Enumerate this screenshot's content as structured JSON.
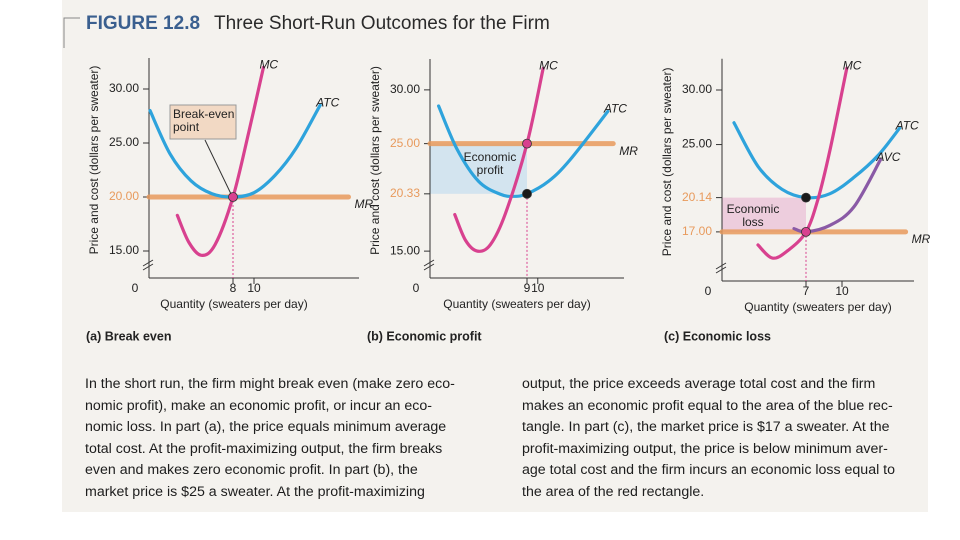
{
  "figure": {
    "label": "FIGURE 12.8",
    "title": "Three Short-Run Outcomes for the Firm"
  },
  "chart_data": [
    {
      "type": "line",
      "title": "(a) Break even",
      "x_label": "Quantity (sweaters per day)",
      "y_label": "Price and cost (dollars per sweater)",
      "xlim": [
        0,
        20
      ],
      "ylim": [
        12.5,
        32.5
      ],
      "xticks": [
        0,
        8,
        10
      ],
      "yticks": [
        {
          "value": 15,
          "label": "15.00"
        },
        {
          "value": 20,
          "label": "20.00"
        },
        {
          "value": 25,
          "label": "25.00"
        },
        {
          "value": 30,
          "label": "30.00"
        }
      ],
      "series": [
        {
          "name": "MR",
          "color": "#e89a5c",
          "x": [
            0,
            19
          ],
          "values": [
            20,
            20
          ]
        },
        {
          "name": "ATC",
          "color": "#2ea3dc",
          "x": [
            0.1,
            2,
            4,
            6,
            8,
            10,
            12,
            14,
            16.3
          ],
          "values": [
            28,
            24,
            21.5,
            20.3,
            20,
            20.4,
            22,
            24.5,
            28.5
          ]
        },
        {
          "name": "MC",
          "color": "#d8418f",
          "x": [
            2.7,
            3.8,
            5,
            6.3,
            8,
            9.5,
            10.9
          ],
          "values": [
            18.3,
            15.8,
            14.6,
            15.6,
            20,
            26,
            32
          ]
        }
      ],
      "points": {
        "x": [
          8
        ],
        "y": [
          20
        ],
        "colors": [
          "#d8418f"
        ]
      },
      "annotation": "Break-even point"
    },
    {
      "type": "line",
      "title": "(b) Economic profit",
      "x_label": "Quantity (sweaters per day)",
      "y_label": "Price and cost (dollars per sweater)",
      "xlim": [
        0,
        18
      ],
      "ylim": [
        12.5,
        32.5
      ],
      "xticks": [
        0,
        9,
        10
      ],
      "yticks": [
        {
          "value": 15,
          "label": "15.00"
        },
        {
          "value": 20.33,
          "label": "20.33"
        },
        {
          "value": 25,
          "label": "25.00"
        },
        {
          "value": 30,
          "label": "30.00"
        }
      ],
      "series": [
        {
          "name": "MR",
          "color": "#e89a5c",
          "x": [
            0,
            17
          ],
          "values": [
            25,
            25
          ]
        },
        {
          "name": "ATC",
          "color": "#2ea3dc",
          "x": [
            0.8,
            2.5,
            4.5,
            6.5,
            7.8,
            9,
            11,
            13,
            16.5
          ],
          "values": [
            28.5,
            24.5,
            21.5,
            20.3,
            20.1,
            20.33,
            21.5,
            23.5,
            28
          ]
        },
        {
          "name": "MC",
          "color": "#d8418f",
          "x": [
            2.3,
            3.3,
            4.4,
            5.6,
            7,
            9,
            10.5
          ],
          "values": [
            18.4,
            16,
            15,
            15.6,
            18.5,
            25,
            32
          ]
        }
      ],
      "points": {
        "x": [
          9,
          9
        ],
        "y": [
          25,
          20.33
        ],
        "colors": [
          "#d8418f",
          "#1a1a1a"
        ]
      },
      "area_color": "#cfe2ee",
      "annotation": "Economic profit"
    },
    {
      "type": "line",
      "title": "(c) Economic loss",
      "x_label": "Quantity (sweaters per day)",
      "y_label": "Price and cost (dollars per sweater)",
      "xlim": [
        0,
        16
      ],
      "ylim": [
        12.5,
        32.5
      ],
      "xticks": [
        0,
        7,
        10
      ],
      "yticks": [
        {
          "value": 17,
          "label": "17.00"
        },
        {
          "value": 20.14,
          "label": "20.14"
        },
        {
          "value": 25,
          "label": "25.00"
        },
        {
          "value": 30,
          "label": "30.00"
        }
      ],
      "series": [
        {
          "name": "MR",
          "color": "#e89a5c",
          "x": [
            0,
            15.3
          ],
          "values": [
            17,
            17
          ]
        },
        {
          "name": "ATC",
          "color": "#2ea3dc",
          "x": [
            1,
            3,
            5,
            7,
            9,
            11,
            13,
            14.8
          ],
          "values": [
            27,
            23,
            20.9,
            20.14,
            20.5,
            22,
            24,
            26.5
          ]
        },
        {
          "name": "AVC",
          "color": "#8a5aa6",
          "x": [
            6,
            7,
            9,
            11,
            13.2
          ],
          "values": [
            17.3,
            17,
            17.6,
            19.3,
            23.6
          ]
        },
        {
          "name": "MC",
          "color": "#d8418f",
          "x": [
            3,
            4.2,
            5.5,
            7,
            8,
            9,
            10.4
          ],
          "values": [
            15.8,
            14.6,
            15.3,
            17,
            20,
            24.5,
            32
          ]
        }
      ],
      "points": {
        "x": [
          7,
          7
        ],
        "y": [
          20.14,
          17
        ],
        "colors": [
          "#1a1a1a",
          "#d8418f"
        ]
      },
      "area_color": "#ecc9da",
      "annotation": "Economic loss"
    }
  ],
  "caption": {
    "left": [
      "In the short run, the firm might break even (make zero eco-",
      "nomic profit), make an economic profit, or incur an eco-",
      "nomic loss. In part (a), the price equals minimum average",
      "total cost. At the profit-maximizing output, the firm breaks",
      "even and makes zero economic profit. In part (b), the",
      "market price is $25 a sweater. At the profit-maximizing"
    ],
    "right": [
      "output, the price exceeds average total cost and the firm",
      "makes an economic profit equal to the area of the blue rec-",
      "tangle. In part (c), the market price is $17 a sweater. At the",
      "profit-maximizing output, the price is below minimum aver-",
      "age total cost and the firm incurs an economic loss equal to",
      "the area of the red rectangle."
    ]
  }
}
